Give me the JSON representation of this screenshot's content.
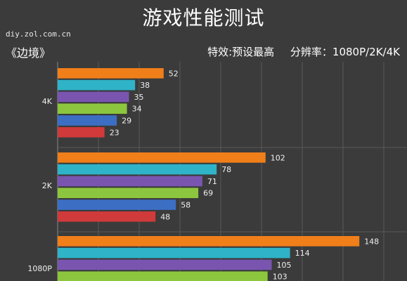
{
  "header": {
    "title": "游戏性能测试",
    "source": "diy.zol.com.cn",
    "game": "《边境》",
    "effect": "特效:预设最高",
    "resolution": "分辨率：1080P/2K/4K"
  },
  "colors": {
    "background": "#3b3b3b",
    "grid": "#5a5a5a",
    "series": [
      "#f07f1a",
      "#2fb3c8",
      "#7a55b0",
      "#8cc63e",
      "#3c6fc4",
      "#d03a3a"
    ]
  },
  "chart_data": {
    "type": "bar",
    "orientation": "horizontal",
    "categories": [
      "4K",
      "2K",
      "1080P"
    ],
    "series": [
      {
        "values": [
          52,
          102,
          148
        ]
      },
      {
        "values": [
          38,
          78,
          114
        ]
      },
      {
        "values": [
          35,
          71,
          105
        ]
      },
      {
        "values": [
          34,
          69,
          103
        ]
      },
      {
        "values": [
          29,
          58,
          null
        ]
      },
      {
        "values": [
          23,
          48,
          null
        ]
      }
    ],
    "xlim": [
      0,
      160
    ],
    "grid": true,
    "legend": "none"
  }
}
